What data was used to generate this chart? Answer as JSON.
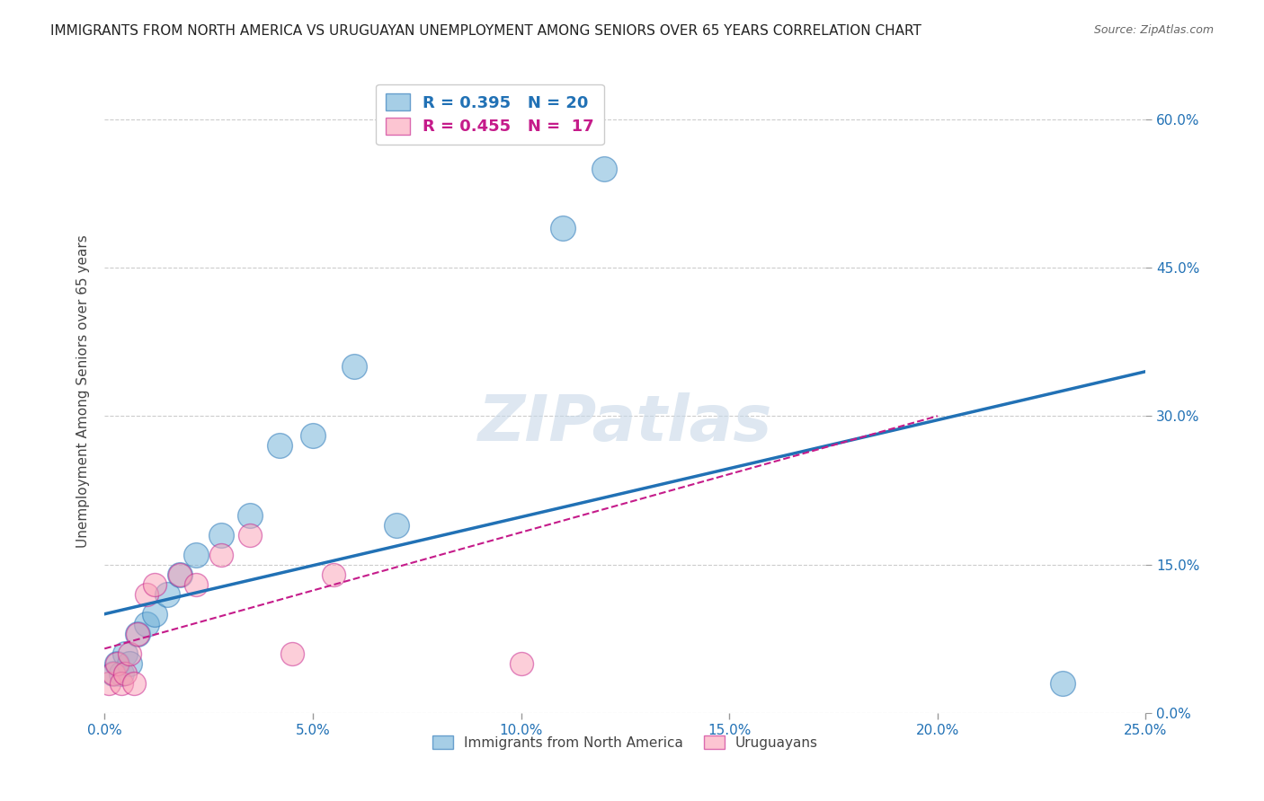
{
  "title": "IMMIGRANTS FROM NORTH AMERICA VS URUGUAYAN UNEMPLOYMENT AMONG SENIORS OVER 65 YEARS CORRELATION CHART",
  "source": "Source: ZipAtlas.com",
  "xlabel_ticks": [
    "0.0%",
    "5.0%",
    "10.0%",
    "15.0%",
    "20.0%",
    "25.0%"
  ],
  "xlabel_vals": [
    0.0,
    0.05,
    0.1,
    0.15,
    0.2,
    0.25
  ],
  "ylabel": "Unemployment Among Seniors over 65 years",
  "ylabel_ticks": [
    "0.0%",
    "15.0%",
    "30.0%",
    "45.0%",
    "60.0%"
  ],
  "ylabel_vals": [
    0.0,
    0.15,
    0.3,
    0.45,
    0.6
  ],
  "xlim": [
    0.0,
    0.25
  ],
  "ylim": [
    0.0,
    0.65
  ],
  "blue_scatter_x": [
    0.002,
    0.003,
    0.004,
    0.005,
    0.006,
    0.008,
    0.01,
    0.012,
    0.015,
    0.018,
    0.022,
    0.028,
    0.035,
    0.042,
    0.05,
    0.06,
    0.07,
    0.11,
    0.12,
    0.23
  ],
  "blue_scatter_y": [
    0.04,
    0.05,
    0.04,
    0.06,
    0.05,
    0.08,
    0.09,
    0.1,
    0.12,
    0.14,
    0.16,
    0.18,
    0.2,
    0.27,
    0.28,
    0.35,
    0.19,
    0.49,
    0.55,
    0.03
  ],
  "pink_scatter_x": [
    0.001,
    0.002,
    0.003,
    0.004,
    0.005,
    0.006,
    0.007,
    0.008,
    0.01,
    0.012,
    0.018,
    0.022,
    0.028,
    0.035,
    0.045,
    0.055,
    0.1
  ],
  "pink_scatter_y": [
    0.03,
    0.04,
    0.05,
    0.03,
    0.04,
    0.06,
    0.03,
    0.08,
    0.12,
    0.13,
    0.14,
    0.13,
    0.16,
    0.18,
    0.06,
    0.14,
    0.05
  ],
  "blue_line_x": [
    0.0,
    0.25
  ],
  "blue_line_y": [
    0.1,
    0.345
  ],
  "pink_line_x": [
    0.0,
    0.2
  ],
  "pink_line_y": [
    0.065,
    0.3
  ],
  "legend_blue_R": "0.395",
  "legend_blue_N": "20",
  "legend_pink_R": "0.455",
  "legend_pink_N": "17",
  "blue_color": "#6baed6",
  "blue_line_color": "#2171b5",
  "pink_color": "#fa9fb5",
  "pink_line_color": "#c51b8a",
  "watermark": "ZIPatlas",
  "background_color": "#ffffff",
  "grid_color": "#cccccc"
}
